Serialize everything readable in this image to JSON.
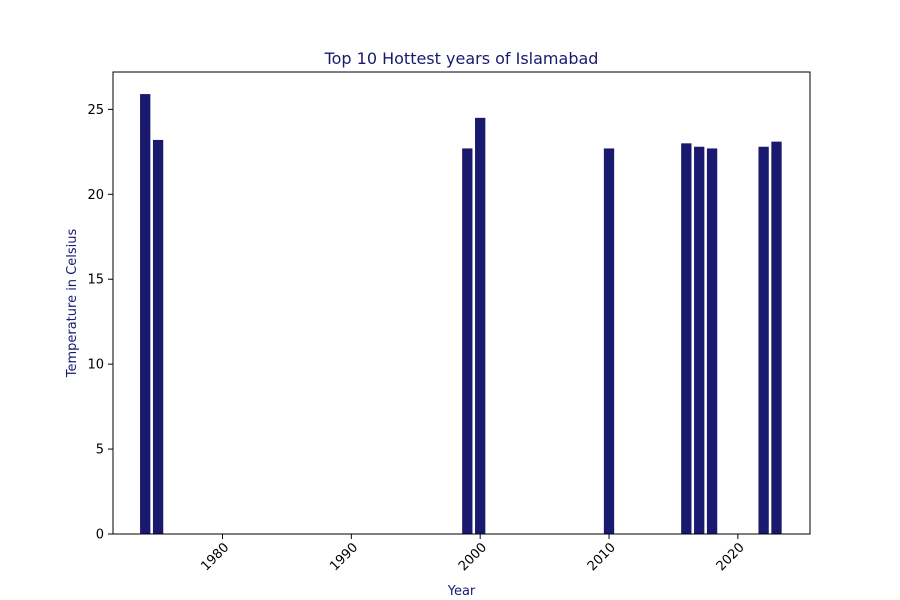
{
  "colors": {
    "bar": "#191970",
    "title": "#191970",
    "axis_label": "#191970",
    "frame": "#000000",
    "background": "#ffffff"
  },
  "chart_data": {
    "type": "bar",
    "title": "Top 10 Hottest years of Islamabad",
    "xlabel": "Year",
    "ylabel": "Temperature in Celsius",
    "x": [
      1974,
      1975,
      1999,
      2000,
      2010,
      2016,
      2017,
      2018,
      2022,
      2023
    ],
    "values": [
      25.9,
      23.2,
      22.7,
      24.5,
      22.7,
      23.0,
      22.8,
      22.7,
      22.8,
      23.1
    ],
    "xlim": [
      1971.5,
      2025.6
    ],
    "ylim": [
      0,
      27.2
    ],
    "x_ticks": [
      1980,
      1990,
      2000,
      2010,
      2020
    ],
    "y_ticks": [
      0,
      5,
      10,
      15,
      20,
      25
    ],
    "x_tick_rotation_deg": 45,
    "grid": false,
    "legend": "none"
  }
}
